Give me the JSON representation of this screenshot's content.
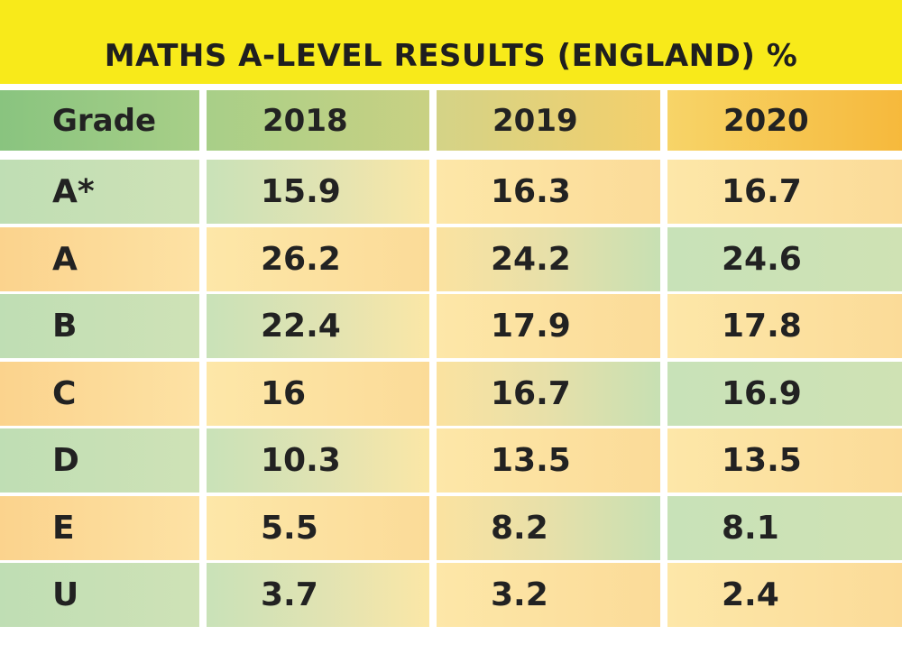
{
  "title": "MATHS A-LEVEL RESULTS (ENGLAND) %",
  "colors": {
    "title_band": "#f8ea1a",
    "green": "#8fc67f",
    "orange": "#f6b93c",
    "text": "#222222"
  },
  "chart_data": {
    "type": "table",
    "title": "MATHS A-LEVEL RESULTS (ENGLAND) %",
    "columns": [
      "Grade",
      "2018",
      "2019",
      "2020"
    ],
    "rows": [
      [
        "A*",
        "15.9",
        "16.3",
        "16.7"
      ],
      [
        "A",
        "26.2",
        "24.2",
        "24.6"
      ],
      [
        "B",
        "22.4",
        "17.9",
        "17.8"
      ],
      [
        "C",
        "16",
        "16.7",
        "16.9"
      ],
      [
        "D",
        "10.3",
        "13.5",
        "13.5"
      ],
      [
        "E",
        "5.5",
        "8.2",
        "8.1"
      ],
      [
        "U",
        "3.7",
        "3.2",
        "2.4"
      ]
    ]
  }
}
